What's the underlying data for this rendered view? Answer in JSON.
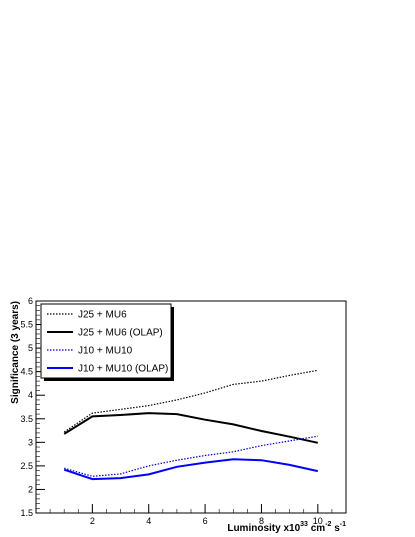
{
  "chart_data": {
    "type": "line",
    "title": "",
    "xlabel": "Luminosity x10",
    "xlabel_sup1": "33",
    "xlabel_mid": " cm",
    "xlabel_sup2": "-2",
    "xlabel_end": " s",
    "xlabel_sup3": "-1",
    "ylabel": "Significance (3 years)",
    "xlim": [
      0,
      11
    ],
    "ylim": [
      1.5,
      6
    ],
    "xticks": [
      2,
      4,
      6,
      8,
      10
    ],
    "yticks": [
      1.5,
      2,
      2.5,
      3,
      3.5,
      4,
      4.5,
      5,
      5.5,
      6
    ],
    "grid": false,
    "legend_position": "top-left",
    "series": [
      {
        "name": "J25 + MU6",
        "color": "#000000",
        "style": "dotted",
        "width": 1.2,
        "x": [
          1,
          2,
          3,
          4,
          5,
          6,
          7,
          8,
          9,
          10
        ],
        "y": [
          3.22,
          3.62,
          3.7,
          3.78,
          3.9,
          4.05,
          4.23,
          4.3,
          4.42,
          4.53
        ]
      },
      {
        "name": "J25 + MU6 (OLAP)",
        "color": "#000000",
        "style": "solid",
        "width": 2,
        "x": [
          1,
          2,
          3,
          4,
          5,
          6,
          7,
          8,
          9,
          10
        ],
        "y": [
          3.18,
          3.55,
          3.58,
          3.62,
          3.6,
          3.48,
          3.38,
          3.24,
          3.12,
          2.99
        ]
      },
      {
        "name": "J10 + MU10",
        "color": "#0000cc",
        "style": "dotted",
        "width": 1.2,
        "x": [
          1,
          2,
          3,
          4,
          5,
          6,
          7,
          8,
          9,
          10
        ],
        "y": [
          2.45,
          2.28,
          2.33,
          2.5,
          2.62,
          2.72,
          2.8,
          2.93,
          3.03,
          3.13
        ]
      },
      {
        "name": "J10 + MU10 (OLAP)",
        "color": "#0000ff",
        "style": "solid",
        "width": 2,
        "x": [
          1,
          2,
          3,
          4,
          5,
          6,
          7,
          8,
          9,
          10
        ],
        "y": [
          2.42,
          2.22,
          2.24,
          2.32,
          2.48,
          2.57,
          2.64,
          2.62,
          2.52,
          2.39
        ]
      }
    ]
  }
}
